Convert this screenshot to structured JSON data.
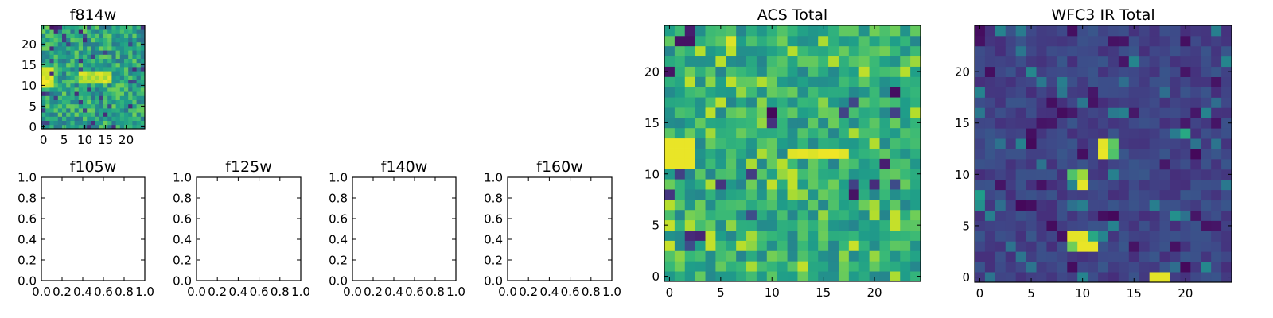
{
  "chart_data": [
    {
      "type": "heatmap",
      "title": "f814w",
      "grid_size": 25,
      "xlim": [
        -0.5,
        24.5
      ],
      "ylim": [
        -0.5,
        24.5
      ],
      "x_ticks": [
        "0",
        "5",
        "10",
        "15",
        "20"
      ],
      "y_ticks": [
        "0",
        "5",
        "10",
        "15",
        "20"
      ],
      "colormap": "viridis",
      "features": [
        {
          "region": "x 0-2, y 10-14",
          "level": "high"
        },
        {
          "region": "x 9-16, y 11-13",
          "level": "high"
        }
      ]
    },
    {
      "type": "heatmap",
      "title": "f105w",
      "xlim": [
        0.0,
        1.0
      ],
      "ylim": [
        0.0,
        1.0
      ],
      "x_ticks": [
        "0.0",
        "0.2",
        "0.4",
        "0.6",
        "0.8",
        "1.0"
      ],
      "y_ticks": [
        "0.0",
        "0.2",
        "0.4",
        "0.6",
        "0.8",
        "1.0"
      ],
      "empty": true
    },
    {
      "type": "heatmap",
      "title": "f125w",
      "xlim": [
        0.0,
        1.0
      ],
      "ylim": [
        0.0,
        1.0
      ],
      "x_ticks": [
        "0.0",
        "0.2",
        "0.4",
        "0.6",
        "0.8",
        "1.0"
      ],
      "y_ticks": [
        "0.0",
        "0.2",
        "0.4",
        "0.6",
        "0.8",
        "1.0"
      ],
      "empty": true
    },
    {
      "type": "heatmap",
      "title": "f140w",
      "xlim": [
        0.0,
        1.0
      ],
      "ylim": [
        0.0,
        1.0
      ],
      "x_ticks": [
        "0.0",
        "0.2",
        "0.4",
        "0.6",
        "0.8",
        "1.0"
      ],
      "y_ticks": [
        "0.0",
        "0.2",
        "0.4",
        "0.6",
        "0.8",
        "1.0"
      ],
      "empty": true
    },
    {
      "type": "heatmap",
      "title": "f160w",
      "xlim": [
        0.0,
        1.0
      ],
      "ylim": [
        0.0,
        1.0
      ],
      "x_ticks": [
        "0.0",
        "0.2",
        "0.4",
        "0.6",
        "0.8",
        "1.0"
      ],
      "y_ticks": [
        "0.0",
        "0.2",
        "0.4",
        "0.6",
        "0.8",
        "1.0"
      ],
      "empty": true
    },
    {
      "type": "heatmap",
      "title": "ACS Total",
      "grid_size": 25,
      "xlim": [
        -0.5,
        24.5
      ],
      "ylim": [
        -0.5,
        24.5
      ],
      "x_ticks": [
        "0",
        "5",
        "10",
        "15",
        "20"
      ],
      "y_ticks": [
        "0",
        "5",
        "10",
        "15",
        "20"
      ],
      "colormap": "viridis",
      "features": [
        {
          "region": "x 0-2, y 11-13",
          "level": "high"
        },
        {
          "region": "x 12-17, y 12",
          "level": "high"
        },
        {
          "region": "x 6, y 23",
          "level": "high"
        }
      ]
    },
    {
      "type": "heatmap",
      "title": "WFC3 IR Total",
      "grid_size": 25,
      "xlim": [
        -0.5,
        24.5
      ],
      "ylim": [
        -0.5,
        24.5
      ],
      "x_ticks": [
        "0",
        "5",
        "10",
        "15",
        "20"
      ],
      "y_ticks": [
        "0",
        "5",
        "10",
        "15",
        "20"
      ],
      "colormap": "viridis",
      "features": [
        {
          "region": "x 9-11, y 3-4",
          "level": "high"
        },
        {
          "region": "x 9-10, y 9-10",
          "level": "high"
        },
        {
          "region": "x 12-13, y 12-13",
          "level": "high"
        },
        {
          "region": "x 17-18, y 0",
          "level": "high"
        }
      ]
    }
  ]
}
